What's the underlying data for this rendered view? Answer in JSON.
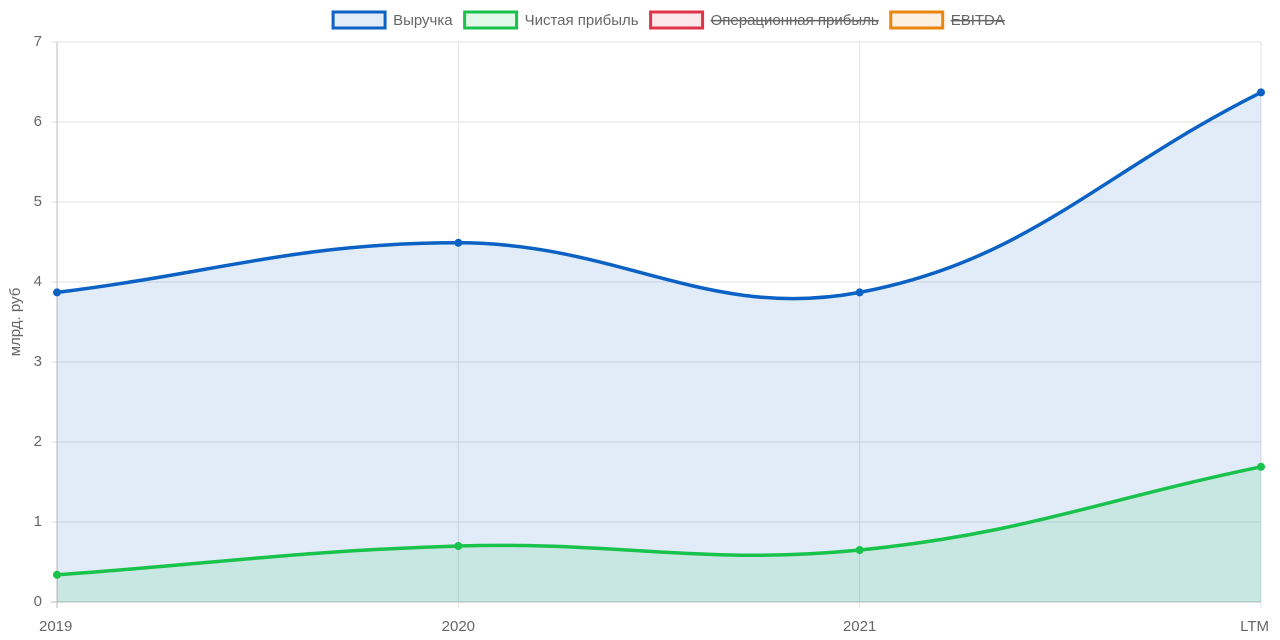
{
  "chart_data": {
    "type": "line",
    "categories": [
      "2019",
      "2020",
      "2021",
      "LTM"
    ],
    "y_label": "млрд. руб",
    "series": [
      {
        "name": "Выручка",
        "color": "#0b62c4",
        "values": [
          3.87,
          4.49,
          3.87,
          6.37
        ]
      },
      {
        "name": "Чистая прибыль",
        "color": "#19c24b",
        "values": [
          0.34,
          0.7,
          0.65,
          1.69
        ]
      },
      {
        "name": "Операционная прибыль",
        "color": "#e0344a",
        "hidden": true,
        "values": [
          null,
          null,
          null,
          null
        ]
      },
      {
        "name": "EBITDA",
        "color": "#e8870e",
        "hidden": true,
        "values": [
          null,
          null,
          null,
          null
        ]
      }
    ],
    "ylim": [
      0,
      7
    ],
    "yticks": [
      0,
      1,
      2,
      3,
      4,
      5,
      6,
      7
    ],
    "grid": true,
    "legend": "top",
    "fill": true
  }
}
